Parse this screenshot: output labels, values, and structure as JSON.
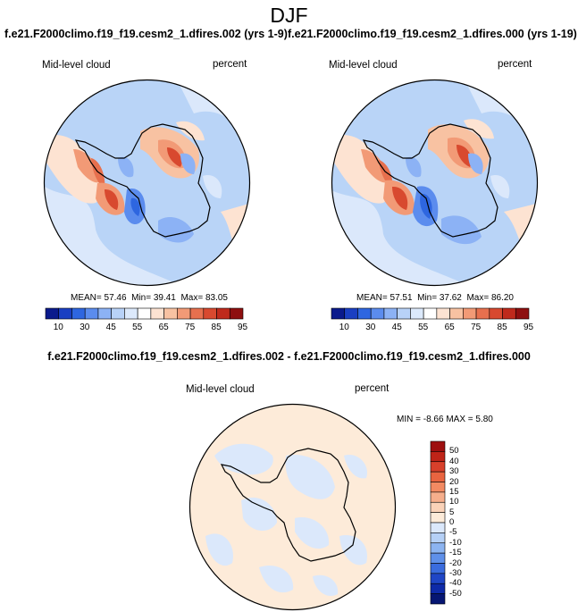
{
  "season": "DJF",
  "panels": [
    {
      "case_title": "f.e21.F2000climo.f19_f19.cesm2_1.dfires.002 (yrs 1-9)",
      "variable": "Mid-level cloud",
      "units": "percent",
      "mean": "57.46",
      "min": "39.41",
      "max": "83.05",
      "mean_label": "MEAN=",
      "min_label": "Min=",
      "max_label": "Max="
    },
    {
      "case_title": "f.e21.F2000climo.f19_f19.cesm2_1.dfires.000 (yrs 1-19)",
      "variable": "Mid-level cloud",
      "units": "percent",
      "mean": "57.51",
      "min": "37.62",
      "max": "86.20",
      "mean_label": "MEAN=",
      "min_label": "Min=",
      "max_label": "Max="
    }
  ],
  "diff": {
    "title": "f.e21.F2000climo.f19_f19.cesm2_1.dfires.002 - f.e21.F2000climo.f19_f19.cesm2_1.dfires.000",
    "variable": "Mid-level cloud",
    "units": "percent",
    "min_label": "MIN =",
    "min": "-8.66",
    "max_label": "MAX =",
    "max": "5.80"
  },
  "colorbar_top": {
    "ticks": [
      "10",
      "30",
      "45",
      "55",
      "65",
      "75",
      "85",
      "95"
    ],
    "colors": [
      "#0a1a8c",
      "#1a3fc2",
      "#2e66e0",
      "#5b8cee",
      "#8cb2f5",
      "#b8d2f8",
      "#dce9fb",
      "#ffffff",
      "#fde3d2",
      "#f8c2a2",
      "#f29a76",
      "#e7704e",
      "#d8492f",
      "#bf2a1c",
      "#8e0f0f"
    ]
  },
  "colorbar_diff": {
    "ticks": [
      "50",
      "40",
      "30",
      "20",
      "15",
      "10",
      "5",
      "0",
      "-5",
      "-10",
      "-15",
      "-20",
      "-30",
      "-40",
      "-50"
    ],
    "colors": [
      "#9e1010",
      "#bf2418",
      "#d8402b",
      "#e96440",
      "#f28a62",
      "#f6ae8c",
      "#fad2b8",
      "#fdebd9",
      "#dbe8fb",
      "#b5d0f6",
      "#8cb4f1",
      "#5f90e9",
      "#3a6cde",
      "#1f46c6",
      "#0e2aa8",
      "#061673"
    ]
  }
}
